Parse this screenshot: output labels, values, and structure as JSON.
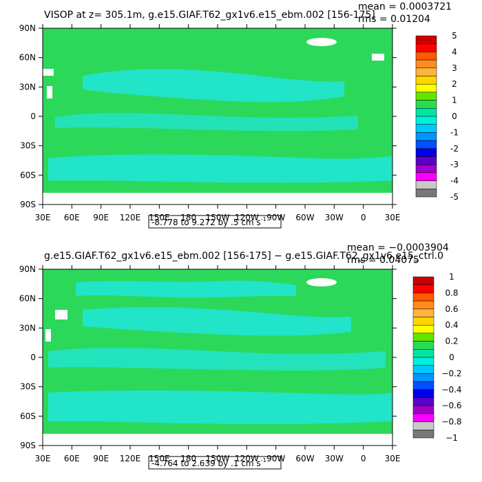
{
  "chart_data": [
    {
      "type": "heatmap",
      "title": "VISOP at z= 305.1m, g.e15.GIAF.T62_gx1v6.e15_ebm.002 [156-175]",
      "stats": {
        "mean": "mean = 0.0003721",
        "rms": "rms = 0.01204"
      },
      "range_label": "-8.778 to 9.272 by .5 cm s",
      "range_unit_exp": "-1",
      "x_ticks": [
        "30E",
        "60E",
        "90E",
        "120E",
        "150E",
        "180",
        "150W",
        "120W",
        "90W",
        "60W",
        "30W",
        "0",
        "30E"
      ],
      "y_ticks": [
        "90N",
        "60N",
        "30N",
        "0",
        "30S",
        "60S",
        "90S"
      ],
      "colorbar_labels": [
        "5",
        "4",
        "3",
        "2",
        "1",
        "0",
        "-1",
        "-2",
        "-3",
        "-4",
        "-5"
      ],
      "colorbar_colors": [
        "#c80000",
        "#ff0000",
        "#ff5a00",
        "#ff8c1e",
        "#ffb43c",
        "#ffd700",
        "#ffff00",
        "#64e600",
        "#28dc50",
        "#00e6a0",
        "#00f0dc",
        "#00c8ff",
        "#0096ff",
        "#0050ff",
        "#0000e6",
        "#5a00c8",
        "#a000c8",
        "#ff00ff",
        "#c8c8c8",
        "#787878"
      ]
    },
    {
      "type": "heatmap",
      "title": "g.e15.GIAF.T62_gx1v6.e15_ebm.002 [156-175] − g.e15.GIAF.T62_gx1v6.e15_ctrl.0",
      "stats": {
        "mean": "mean = −0.0003904",
        "rms": "rms = 0.04075"
      },
      "range_label": "-4.764 to 2.639 by .1 cm s",
      "range_unit_exp": "-1",
      "x_ticks": [
        "30E",
        "60E",
        "90E",
        "120E",
        "150E",
        "180",
        "150W",
        "120W",
        "90W",
        "60W",
        "30W",
        "0",
        "30E"
      ],
      "y_ticks": [
        "90N",
        "60N",
        "30N",
        "0",
        "30S",
        "60S",
        "90S"
      ],
      "colorbar_labels": [
        "1",
        "0.8",
        "0.6",
        "0.4",
        "0.2",
        "0",
        "−0.2",
        "−0.4",
        "−0.6",
        "−0.8",
        "−1"
      ],
      "colorbar_colors": [
        "#c80000",
        "#ff0000",
        "#ff5a00",
        "#ff8c1e",
        "#ffb43c",
        "#ffd700",
        "#ffff00",
        "#64e600",
        "#28dc50",
        "#00e6a0",
        "#00f0dc",
        "#00c8ff",
        "#0096ff",
        "#0050ff",
        "#0000e6",
        "#5a00c8",
        "#a000c8",
        "#ff00ff",
        "#c8c8c8",
        "#787878"
      ]
    }
  ],
  "colors": {
    "dominant_green": "#2cd85a",
    "cyan_band": "#22e4c8",
    "land": "#ffffff"
  }
}
